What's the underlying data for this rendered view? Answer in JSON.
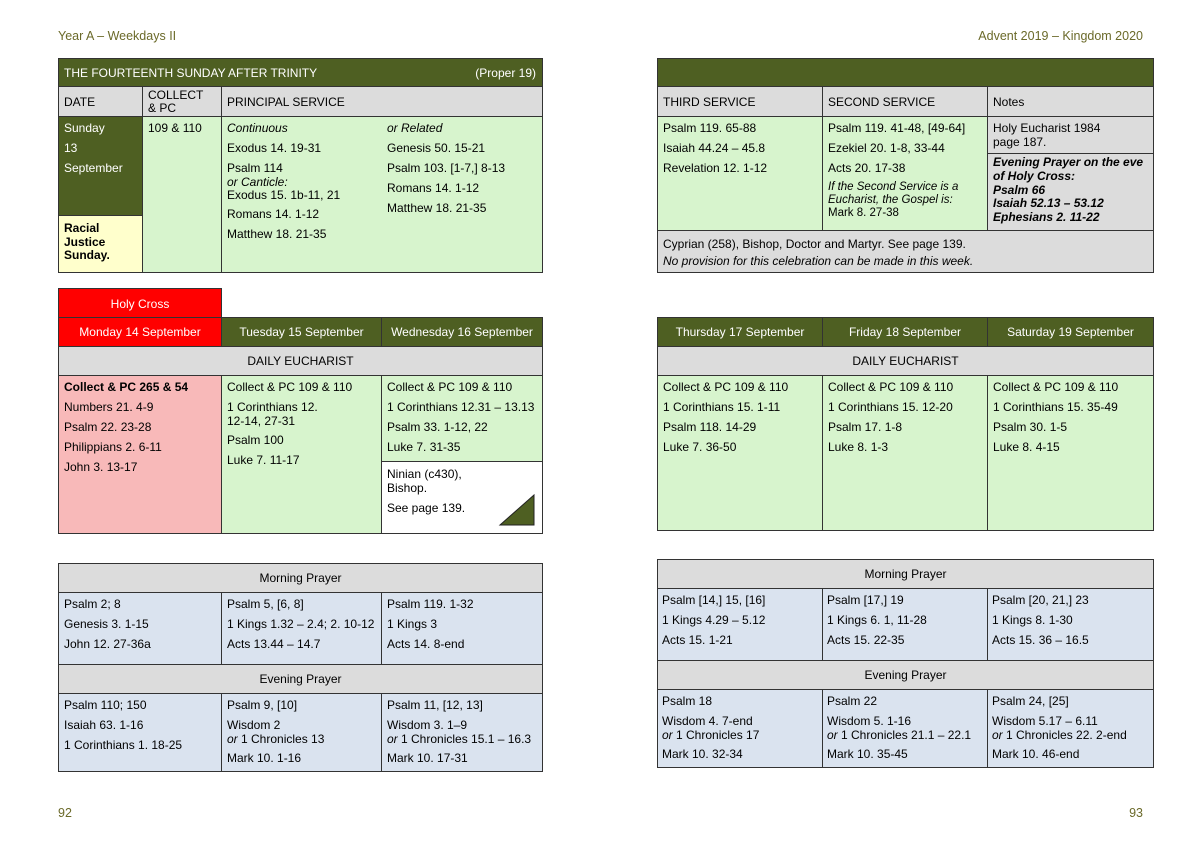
{
  "header": {
    "left": "Year A – Weekdays II",
    "right": "Advent 2019 – Kingdom 2020"
  },
  "footer": {
    "left_page": "92",
    "right_page": "93"
  },
  "sunday": {
    "title": "THE FOURTEENTH SUNDAY AFTER TRINITY",
    "proper": "(Proper 19)",
    "col_date": "DATE",
    "col_collect_1": "COLLECT",
    "col_collect_2": "& PC",
    "col_principal": "PRINCIPAL SERVICE",
    "col_third": "THIRD SERVICE",
    "col_second": "SECOND SERVICE",
    "col_notes": "Notes",
    "date": [
      "Sunday",
      "13",
      "September"
    ],
    "observance": [
      "Racial",
      "Justice",
      "Sunday."
    ],
    "collect": "109 & 110",
    "continuous_label": "Continuous",
    "continuous": [
      "Exodus 14. 19-31",
      "Psalm 114",
      "or Canticle:",
      "Exodus 15. 1b-11, 21",
      "Romans 14. 1-12",
      "Matthew 18. 21-35"
    ],
    "related_label": "or Related",
    "related": [
      "Genesis 50. 15-21",
      "Psalm 103. [1-7,] 8-13",
      "Romans 14. 1-12",
      "Matthew 18. 21-35"
    ],
    "third": [
      "Psalm 119. 65-88",
      "Isaiah 44.24 – 45.8",
      "Revelation 12. 1-12"
    ],
    "second": [
      "Psalm 119. 41-48, [49-64]",
      "Ezekiel 20. 1-8, 33-44",
      "Acts 20. 17-38"
    ],
    "second_note": [
      "If the Second Service is a",
      "Eucharist, the Gospel is:"
    ],
    "second_gospel": "Mark 8. 27-38",
    "notes_top": [
      "Holy Eucharist 1984",
      "page 187."
    ],
    "notes_bottom": [
      "Evening Prayer on the eve",
      "of Holy Cross:",
      "Psalm 66",
      "Isaiah 52.13 – 53.12",
      "Ephesians 2. 11-22"
    ],
    "commem_1": "Cyprian (258), Bishop, Doctor and Martyr. See page 139.",
    "commem_2": "No provision for this celebration can be made in this week."
  },
  "weekdays": {
    "holy_cross": "Holy Cross",
    "daily_eucharist": "DAILY EUCHARIST",
    "morning_prayer": "Morning Prayer",
    "evening_prayer": "Evening Prayer",
    "days": [
      {
        "name": "Monday 14 September",
        "eucharist": [
          "Collect & PC 265 & 54",
          "Numbers 21. 4-9",
          "Psalm 22. 23-28",
          "Philippians 2. 6-11",
          "John 3. 13-17"
        ],
        "mp": [
          "Psalm 2; 8",
          "Genesis 3. 1-15",
          "John 12. 27-36a"
        ],
        "ep": [
          "Psalm 110; 150",
          "Isaiah 63. 1-16",
          "1 Corinthians 1. 18-25"
        ]
      },
      {
        "name": "Tuesday 15 September",
        "eucharist": [
          "Collect & PC 109 & 110",
          "1 Corinthians 12.",
          "12-14, 27-31",
          "Psalm 100",
          "Luke 7. 11-17"
        ],
        "mp": [
          "Psalm 5, [6, 8]",
          "1 Kings 1.32 – 2.4; 2. 10-12",
          "Acts 13.44 – 14.7"
        ],
        "ep": [
          "Psalm 9, [10]",
          "Wisdom 2",
          "or",
          " 1 Chronicles 13",
          "Mark 10. 1-16"
        ]
      },
      {
        "name": "Wednesday 16 September",
        "eucharist": [
          "Collect & PC 109 & 110",
          "1 Corinthians 12.31 – 13.13",
          "Psalm 33. 1-12, 22",
          "Luke 7. 31-35"
        ],
        "commem": [
          "Ninian (c430),",
          "Bishop.",
          "See page 139."
        ],
        "mp": [
          "Psalm 119. 1-32",
          "1 Kings 3",
          "Acts 14. 8-end"
        ],
        "ep": [
          "Psalm 11, [12, 13]",
          "Wisdom 3. 1–9",
          "or",
          " 1 Chronicles 15.1 – 16.3",
          "Mark 10. 17-31"
        ]
      },
      {
        "name": "Thursday 17 September",
        "eucharist": [
          "Collect & PC 109 & 110",
          "1 Corinthians 15. 1-11",
          "Psalm 118. 14-29",
          "Luke 7. 36-50"
        ],
        "mp": [
          "Psalm [14,] 15, [16]",
          "1 Kings 4.29 – 5.12",
          "Acts 15. 1-21"
        ],
        "ep": [
          "Psalm 18",
          "Wisdom 4. 7-end",
          "or",
          " 1 Chronicles 17",
          "Mark 10. 32-34"
        ]
      },
      {
        "name": "Friday 18 September",
        "eucharist": [
          "Collect & PC 109 & 110",
          "1 Corinthians 15. 12-20",
          "Psalm 17. 1-8",
          "Luke 8. 1-3"
        ],
        "mp": [
          "Psalm [17,] 19",
          "1 Kings 6. 1, 11-28",
          "Acts 15. 22-35"
        ],
        "ep": [
          "Psalm 22",
          "Wisdom 5. 1-16",
          "or",
          " 1 Chronicles 21.1 – 22.1",
          "Mark 10. 35-45"
        ]
      },
      {
        "name": "Saturday 19 September",
        "eucharist": [
          "Collect & PC 109 & 110",
          "1 Corinthians 15. 35-49",
          "Psalm 30. 1-5",
          "Luke 8. 4-15"
        ],
        "mp": [
          "Psalm [20, 21,] 23",
          "1 Kings 8. 1-30",
          "Acts 15. 36 – 16.5"
        ],
        "ep": [
          "Psalm 24, [25]",
          "Wisdom 5.17 – 6.11",
          "or",
          " 1 Chronicles 22. 2-end",
          "Mark 10. 46-end"
        ]
      }
    ]
  },
  "colors": {
    "dark_green": "#4e5f22",
    "light_green": "#d7f4cd",
    "pink": "#f8b9b9",
    "red": "#ff0000",
    "grey": "#dcdcdc",
    "blue": "#dae3ef",
    "cream": "#ffffcc",
    "header_text": "#6b6a2a"
  }
}
